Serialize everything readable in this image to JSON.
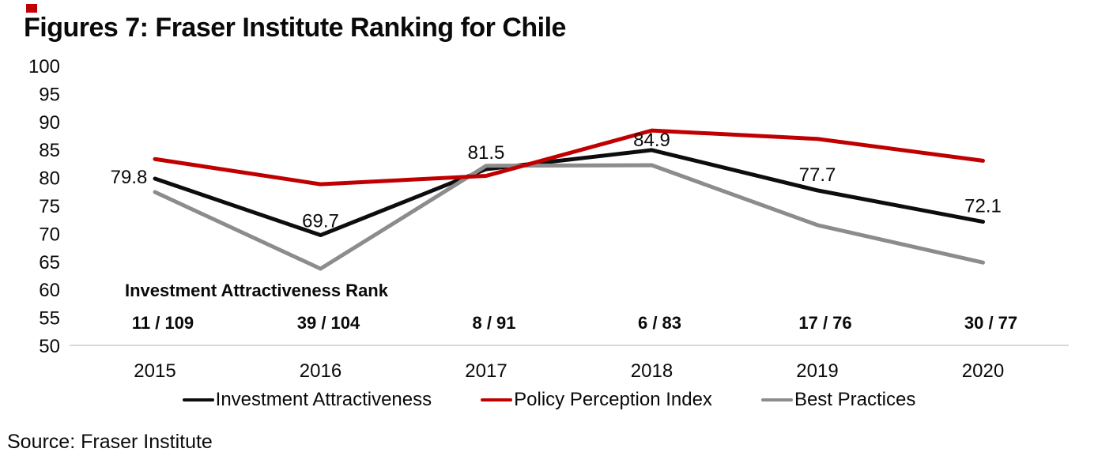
{
  "title": "Figures 7: Fraser Institute Ranking for Chile",
  "source": "Source: Fraser Institute",
  "colors": {
    "accent": "#c00000",
    "axis": "#d9d9d9"
  },
  "annotation": {
    "rank_heading": "Investment Attractiveness Rank",
    "ranks": [
      "11 / 109",
      "39 / 104",
      "8 / 91",
      "6 / 83",
      "17 / 76",
      "30 / 77"
    ]
  },
  "chart_data": {
    "type": "line",
    "x": [
      "2015",
      "2016",
      "2017",
      "2018",
      "2019",
      "2020"
    ],
    "series": [
      {
        "name": "Investment Attractiveness",
        "color": "#0d0d0d",
        "values": [
          79.8,
          69.7,
          81.5,
          84.9,
          77.7,
          72.1
        ],
        "value_labels": [
          "79.8",
          "69.7",
          "81.5",
          "84.9",
          "77.7",
          "72.1"
        ]
      },
      {
        "name": "Policy Perception Index",
        "color": "#c00000",
        "values": [
          83.3,
          78.8,
          80.3,
          88.4,
          86.9,
          83.0
        ]
      },
      {
        "name": "Best Practices",
        "color": "#8c8c8c",
        "values": [
          77.4,
          63.7,
          82.1,
          82.2,
          71.5,
          64.8
        ]
      }
    ],
    "ylim": [
      50,
      100
    ],
    "yticks": [
      100,
      95,
      90,
      85,
      80,
      75,
      70,
      65,
      60,
      55,
      50
    ],
    "grid": false,
    "legend_position": "bottom",
    "value_labels_on": "Investment Attractiveness"
  }
}
